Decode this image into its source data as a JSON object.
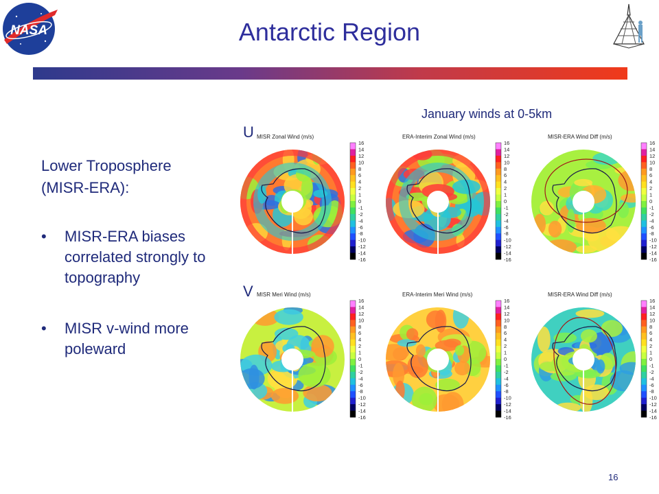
{
  "slide": {
    "title": "Antarctic Region",
    "heading": "Lower Troposphere (MISR-ERA):",
    "bullets": [
      "MISR-ERA biases correlated strongly to topography",
      "MISR v-wind more poleward"
    ],
    "page_number": "16"
  },
  "logo": {
    "text": "NASA"
  },
  "figure": {
    "caption": "January winds at 0-5km",
    "row_labels": [
      "U",
      "V"
    ],
    "panels": [
      {
        "title": "MISR Zonal Wind (m/s)"
      },
      {
        "title": "ERA-Interim Zonal Wind (m/s)"
      },
      {
        "title": "MISR-ERA Wind Diff (m/s)"
      },
      {
        "title": "MISR Meri Wind (m/s)"
      },
      {
        "title": "ERA-Interim Meri Wind (m/s)"
      },
      {
        "title": "MISR-ERA Wind Diff (m/s)"
      }
    ],
    "colorbar_ticks": [
      "16",
      "14",
      "12",
      "10",
      "8",
      "6",
      "4",
      "2",
      "1",
      "0",
      "-1",
      "-2",
      "-4",
      "-6",
      "-8",
      "-10",
      "-12",
      "-14",
      "-16"
    ]
  },
  "colors": {
    "title": "#2e2e9c",
    "text": "#1f2a7a",
    "rule_start": "#2e3a8c",
    "rule_end": "#f03a1a"
  }
}
